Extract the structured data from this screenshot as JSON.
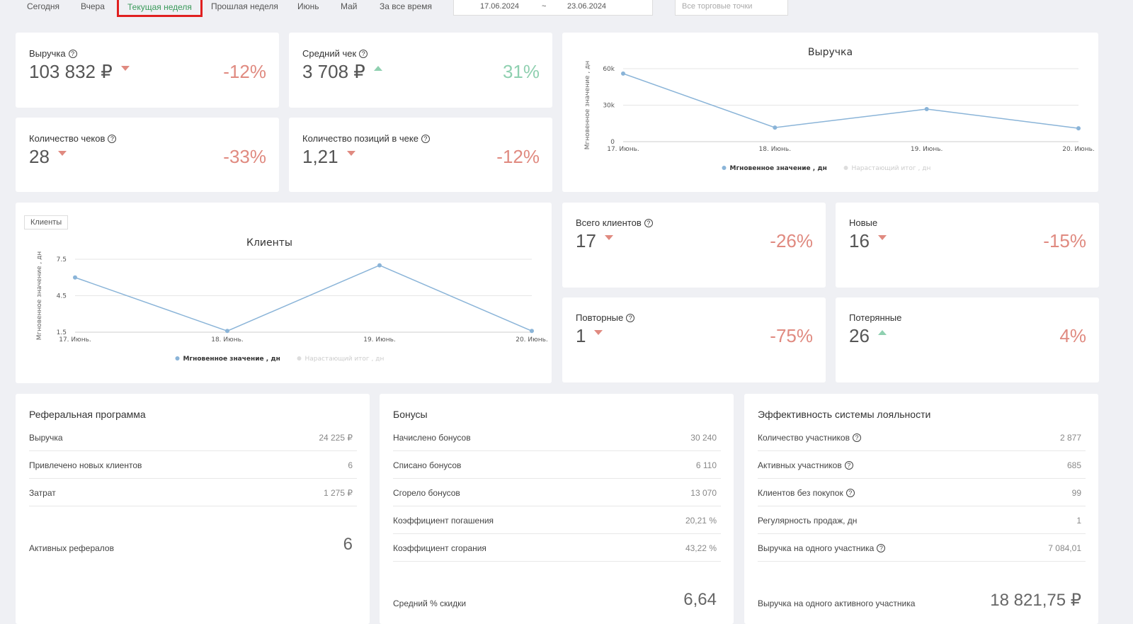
{
  "tabs": [
    "Сегодня",
    "Вчера",
    "Текущая неделя",
    "Прошлая неделя",
    "Июнь",
    "Май",
    "За все время"
  ],
  "active_tab": 2,
  "date_from": "17.06.2024",
  "date_separator": "~",
  "date_to": "23.06.2024",
  "store_select": "Все торговые точки",
  "kpis": [
    {
      "label": "Выручка",
      "value": "103 832 ₽",
      "change": "-12%",
      "trend": "down",
      "help": true
    },
    {
      "label": "Средний чек",
      "value": "3 708 ₽",
      "change": "31%",
      "trend": "up",
      "help": true
    },
    {
      "label": "Количество чеков",
      "value": "28",
      "change": "-33%",
      "trend": "down",
      "help": true
    },
    {
      "label": "Количество позиций в чеке",
      "value": "1,21",
      "change": "-12%",
      "trend": "down",
      "help": true
    }
  ],
  "client_kpis": [
    {
      "label": "Всего клиентов",
      "value": "17",
      "change": "-26%",
      "trend": "down",
      "help": true
    },
    {
      "label": "Новые",
      "value": "16",
      "change": "-15%",
      "trend": "down",
      "help": false
    },
    {
      "label": "Повторные",
      "value": "1",
      "change": "-75%",
      "trend": "down",
      "help": true
    },
    {
      "label": "Потерянные",
      "value": "26",
      "change": "4%",
      "trend": "up",
      "help": false
    }
  ],
  "charts": [
    {
      "type": "line",
      "title": "Выручка",
      "y_label": "Мгновенное значение , дн",
      "categories": [
        "17. Июнь.",
        "18. Июнь.",
        "19. Июнь.",
        "20. Июнь."
      ],
      "series": [
        {
          "name": "Мгновенное значение , дн",
          "color": "#8ab4d8",
          "values": [
            56000,
            11600,
            26800,
            11000
          ]
        }
      ],
      "legend_inactive": "Нарастающий итог , дн",
      "ylim": [
        0,
        60000
      ],
      "yticks": [
        0,
        {
          "value": 30000,
          "label": "30k"
        },
        {
          "value": 60000,
          "label": "60k"
        }
      ],
      "grid": true
    },
    {
      "type": "line",
      "dropdown": "Клиенты",
      "title": "Клиенты",
      "y_label": "Мгновенное значение , дн",
      "categories": [
        "17. Июнь.",
        "18. Июнь.",
        "19. Июнь.",
        "20. Июнь."
      ],
      "series": [
        {
          "name": "Мгновенное значение , дн",
          "color": "#8ab4d8",
          "values": [
            6.0,
            1.6,
            7.0,
            1.6
          ]
        }
      ],
      "legend_inactive": "Нарастающий итог , дн",
      "ylim": [
        1.5,
        7.5
      ],
      "yticks": [
        1.5,
        4.5,
        7.5
      ],
      "grid": true
    }
  ],
  "tables": [
    {
      "title": "Реферальная программа",
      "rows": [
        {
          "label": "Выручка",
          "value": "24 225 ₽",
          "help": false
        },
        {
          "label": "Привлечено новых клиентов",
          "value": "6",
          "help": false
        },
        {
          "label": "Затрат",
          "value": "1 275 ₽",
          "help": false
        }
      ],
      "big": {
        "label": "Активных рефералов",
        "value": "6"
      }
    },
    {
      "title": "Бонусы",
      "rows": [
        {
          "label": "Начислено бонусов",
          "value": "30 240",
          "help": false
        },
        {
          "label": "Списано бонусов",
          "value": "6 110",
          "help": false
        },
        {
          "label": "Сгорело бонусов",
          "value": "13 070",
          "help": false
        },
        {
          "label": "Коэффициент погашения",
          "value": "20,21 %",
          "help": false
        },
        {
          "label": "Коэффициент сгорания",
          "value": "43,22 %",
          "help": false
        }
      ],
      "big": {
        "label": "Средний % скидки",
        "value": "6,64"
      }
    },
    {
      "title": "Эффективность системы лояльности",
      "rows": [
        {
          "label": "Количество участников",
          "value": "2 877",
          "help": true
        },
        {
          "label": "Активных участников",
          "value": "685",
          "help": true
        },
        {
          "label": "Клиентов без покупок",
          "value": "99",
          "help": true
        },
        {
          "label": "Регулярность продаж, дн",
          "value": "1",
          "help": false
        },
        {
          "label": "Выручка на одного участника",
          "value": "7 084,01",
          "help": true
        }
      ],
      "big": {
        "label": "Выручка на одного активного участника",
        "value": "18 821,75 ₽"
      }
    }
  ]
}
